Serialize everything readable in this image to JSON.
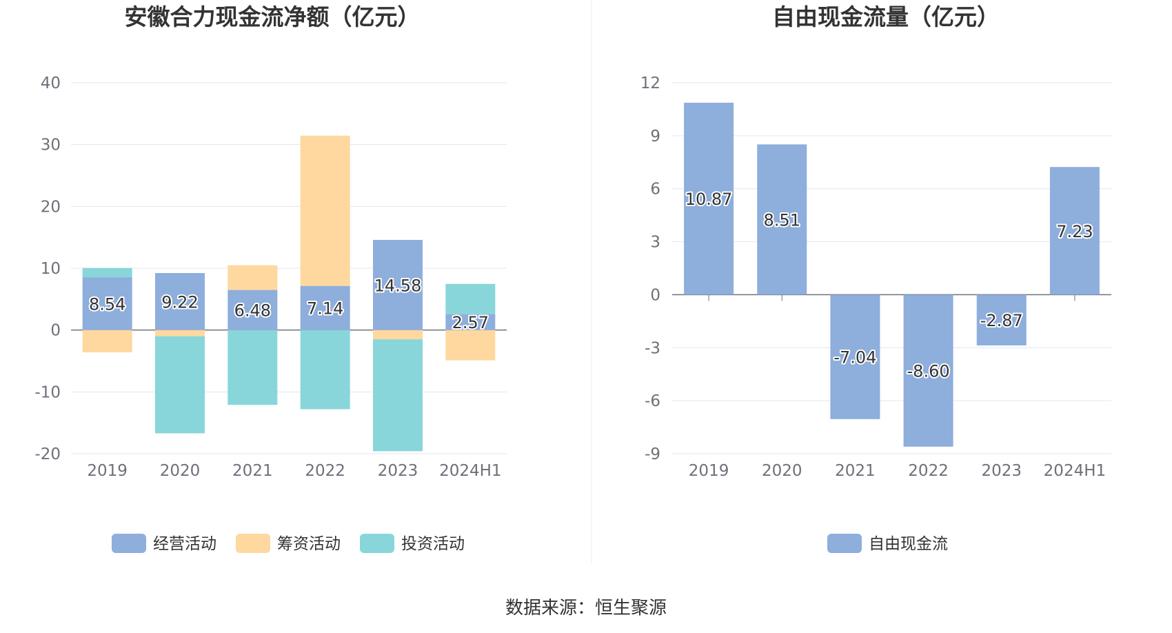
{
  "source_text": "数据来源：恒生聚源",
  "colors": {
    "operating": "#8eaedc",
    "financing": "#fed89e",
    "investing": "#88d6da",
    "fcf": "#8eaedc",
    "grid": "#e0e6f1",
    "axis": "#6e7079"
  },
  "chart_data": [
    {
      "type": "bar",
      "stacked": true,
      "title": "安徽合力现金流净额（亿元）",
      "categories": [
        "2019",
        "2020",
        "2021",
        "2022",
        "2023",
        "2024H1"
      ],
      "ylim": [
        -20,
        40
      ],
      "yticks": [
        -20,
        -10,
        0,
        10,
        20,
        30,
        40
      ],
      "grid": true,
      "legend_position": "bottom",
      "series": [
        {
          "name": "经营活动",
          "color": "#8eaedc",
          "values": [
            8.54,
            9.22,
            6.48,
            7.14,
            14.58,
            2.57
          ],
          "labels": [
            "8.54",
            "9.22",
            "6.48",
            "7.14",
            "14.58",
            "2.57"
          ]
        },
        {
          "name": "筹资活动",
          "color": "#fed89e",
          "values": [
            -3.6,
            -1.0,
            4.0,
            24.3,
            -1.5,
            -4.9
          ]
        },
        {
          "name": "投资活动",
          "color": "#88d6da",
          "values": [
            1.5,
            -15.7,
            -12.1,
            -12.8,
            -18.1,
            4.9
          ]
        }
      ]
    },
    {
      "type": "bar",
      "title": "自由现金流量（亿元）",
      "categories": [
        "2019",
        "2020",
        "2021",
        "2022",
        "2023",
        "2024H1"
      ],
      "ylim": [
        -9,
        12
      ],
      "yticks": [
        -9,
        -6,
        -3,
        0,
        3,
        6,
        9,
        12
      ],
      "grid": true,
      "legend_position": "bottom",
      "series": [
        {
          "name": "自由现金流",
          "color": "#8eaedc",
          "values": [
            10.87,
            8.51,
            -7.04,
            -8.6,
            -2.87,
            7.23
          ],
          "labels": [
            "10.87",
            "8.51",
            "-7.04",
            "-8.60",
            "-2.87",
            "7.23"
          ]
        }
      ]
    }
  ]
}
